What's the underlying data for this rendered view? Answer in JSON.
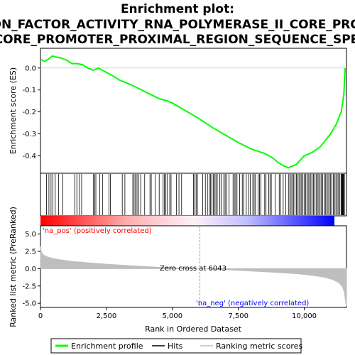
{
  "title_lines": [
    "Enrichment plot:",
    "GO_TRANSCRIPTION_FACTOR_ACTIVITY_RNA_POLYMERASE_II_CORE_PROMOTER_PROXIMAL_REGION_SEQUENCE_SPECIFIC_BINDING",
    "GO_TRANSCRIPTION_FACTOR_ACTIVITY_RNA_POLYMERASE_II_CORE_PROMOTER_PROXIMAL_REGION_SEQUENCE_SPECIFIC_BINDING"
  ],
  "chart_data": {
    "type": "line",
    "x_max": 11600,
    "xlabel": "Rank in Ordered Dataset",
    "x_ticks": [
      0,
      2500,
      5000,
      7500,
      10000
    ],
    "x_tick_labels": [
      "0",
      "2,500",
      "5,000",
      "7,500",
      "10,000"
    ],
    "es_panel": {
      "ylabel": "Enrichment score (ES)",
      "ylim": [
        -0.48,
        0.09
      ],
      "y_ticks": [
        0.0,
        -0.1,
        -0.2,
        -0.3,
        -0.4
      ],
      "y_tick_labels": [
        "0.0",
        "-0.1",
        "-0.2",
        "-0.3",
        "-0.4"
      ],
      "x": [
        0,
        150,
        300,
        450,
        600,
        800,
        1000,
        1200,
        1400,
        1600,
        1800,
        2000,
        2200,
        2500,
        2800,
        3000,
        3500,
        4000,
        4500,
        4800,
        5000,
        5500,
        6000,
        6500,
        7000,
        7500,
        8000,
        8500,
        8800,
        9000,
        9200,
        9400,
        9500,
        9700,
        9850,
        10000,
        10300,
        10600,
        10800,
        11000,
        11200,
        11400,
        11500,
        11550
      ],
      "y": [
        0.04,
        0.03,
        0.04,
        0.055,
        0.05,
        0.045,
        0.035,
        0.02,
        0.02,
        0.015,
        0.0,
        -0.01,
        0.0,
        -0.02,
        -0.04,
        -0.055,
        -0.08,
        -0.11,
        -0.14,
        -0.15,
        -0.16,
        -0.195,
        -0.23,
        -0.27,
        -0.305,
        -0.34,
        -0.37,
        -0.39,
        -0.41,
        -0.43,
        -0.445,
        -0.455,
        -0.45,
        -0.44,
        -0.42,
        -0.4,
        -0.385,
        -0.36,
        -0.33,
        -0.3,
        -0.26,
        -0.2,
        -0.12,
        0.0
      ],
      "hits_x": [
        230,
        320,
        400,
        470,
        560,
        690,
        850,
        1300,
        1380,
        1480,
        1560,
        2010,
        2060,
        2100,
        2250,
        2350,
        2600,
        2650,
        3100,
        3200,
        3500,
        3550,
        3600,
        3660,
        3720,
        3800,
        3950,
        4150,
        4200,
        4350,
        4500,
        4650,
        4700,
        4750,
        4800,
        4900,
        4950,
        5150,
        5250,
        5350,
        5800,
        5850,
        5900,
        5950,
        6150,
        6250,
        6330,
        6400,
        6450,
        6500,
        6550,
        6600,
        6650,
        6700,
        6800,
        6850,
        6950,
        7000,
        7050,
        7150,
        7300,
        7350,
        7400,
        7450,
        7550,
        7650,
        7700,
        7800,
        7900,
        7950,
        8050,
        8100,
        8150,
        8250,
        8300,
        8350,
        8500,
        8550,
        8650,
        8700,
        8750,
        8900,
        9050,
        9100,
        9200,
        9300,
        9400,
        9450,
        9500,
        9550,
        9600,
        9650,
        9700,
        9750,
        9800,
        9850,
        9900,
        9950,
        10000,
        10050,
        10100,
        10150,
        10200,
        10250,
        10300,
        10350,
        10400,
        10450,
        10500,
        10550,
        10600,
        10650,
        10700,
        10750,
        10800,
        10850,
        10900,
        10950,
        11000,
        11050,
        11100,
        11150,
        11200,
        11250,
        11300,
        11350,
        11400,
        11420,
        11440,
        11460,
        11480,
        11500,
        11520
      ]
    },
    "rank_panel": {
      "ylabel": "Ranked list metric (PreRanked)",
      "ylim": [
        -5.6,
        6.2
      ],
      "y_ticks": [
        5.0,
        2.5,
        0.0,
        -2.5,
        -5.0
      ],
      "y_tick_labels": [
        "5.0",
        "2.5",
        "0.0",
        "-2.5",
        "-5.0"
      ],
      "x": [
        0,
        30,
        80,
        150,
        300,
        500,
        800,
        1200,
        1800,
        2500,
        3500,
        4500,
        5500,
        6043,
        7000,
        8000,
        9000,
        9800,
        10400,
        10800,
        11100,
        11300,
        11450,
        11520,
        11560,
        11600
      ],
      "y": [
        3.2,
        2.5,
        2.1,
        1.9,
        1.65,
        1.45,
        1.25,
        1.05,
        0.85,
        0.65,
        0.4,
        0.2,
        0.05,
        0.0,
        -0.15,
        -0.35,
        -0.55,
        -0.75,
        -1.0,
        -1.25,
        -1.6,
        -2.0,
        -2.6,
        -3.4,
        -4.5,
        -5.4
      ],
      "zero_cross": 6043,
      "zero_cross_label": "Zero cross at 6043",
      "pos_label": "'na_pos' (positively correlated)",
      "neg_label": "'na_neg' (negatively correlated)"
    },
    "colors": {
      "es_line": "#00ff00",
      "hits": "#000000",
      "metric_fill": "#bebebe",
      "pos_text": "#ff0000",
      "neg_text": "#0000ff",
      "zero_line": "#a0a0a0"
    },
    "legend": [
      {
        "label": "Enrichment profile",
        "symbol": "green-line"
      },
      {
        "label": "Hits",
        "symbol": "black-line"
      },
      {
        "label": "Ranking metric scores",
        "symbol": "gray-line"
      }
    ]
  }
}
